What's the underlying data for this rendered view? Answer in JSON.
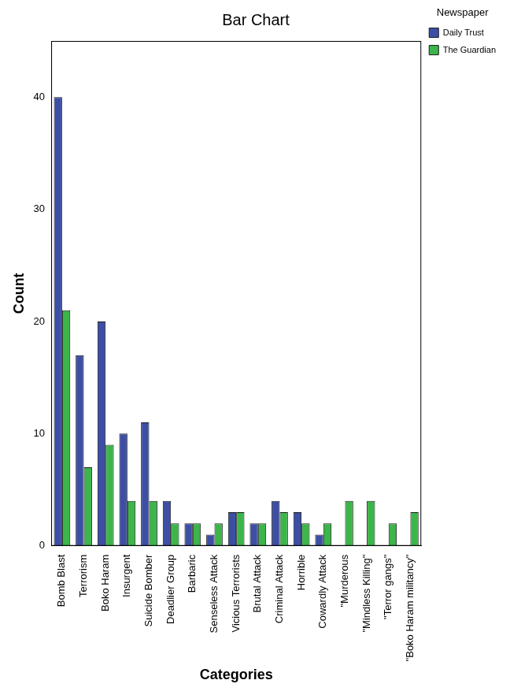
{
  "chart_data": {
    "type": "bar",
    "title": "Bar Chart",
    "x_label": "Categories",
    "y_label": "Count",
    "legend_title": "Newspaper",
    "legend": "upper right",
    "grid": false,
    "categories": [
      "Bomb Blast",
      "Terrorism",
      "Boko Haram",
      "Insurgent",
      "Suicide Bomber",
      "Deadlier Group",
      "Barbaric",
      "Senseless Attack",
      "Vicious Terrorists",
      "Brutal Attack",
      "Criminal Attack",
      "Horrible",
      "Cowardly Attack",
      "\"Murderous",
      "\"Mindless Killing\"",
      "\"Terror gangs\"",
      "\"Boko Haram militancy\""
    ],
    "series": [
      {
        "name": "Daily Trust",
        "color": "#3d4fa5",
        "values": [
          40,
          17,
          20,
          10,
          11,
          4,
          2,
          1,
          3,
          2,
          4,
          3,
          1,
          0,
          0,
          0,
          0
        ]
      },
      {
        "name": "The Guardian",
        "color": "#3cb54a",
        "values": [
          21,
          7,
          9,
          4,
          4,
          2,
          2,
          2,
          3,
          2,
          3,
          2,
          2,
          4,
          4,
          2,
          3
        ]
      }
    ],
    "ylim": [
      0,
      45
    ],
    "yticks": [
      0,
      10,
      20,
      30,
      40
    ]
  }
}
